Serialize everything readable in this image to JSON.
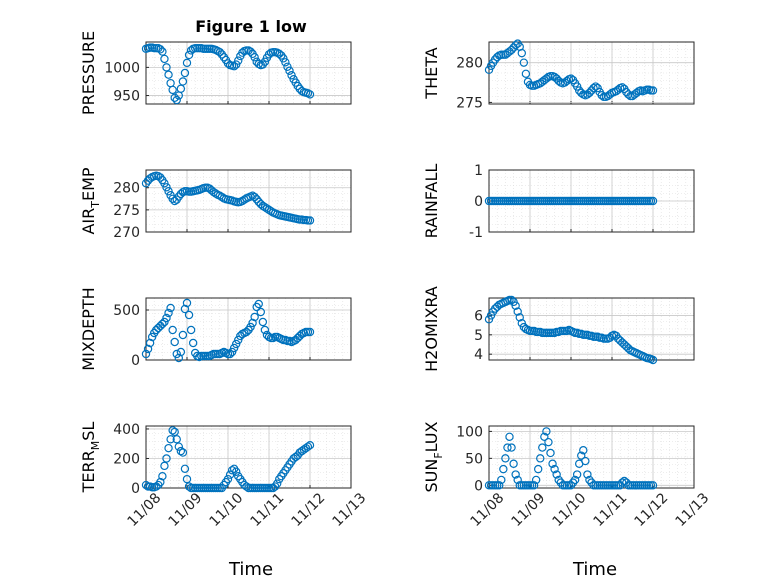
{
  "title": "Figure 1 low",
  "xlabel": "Time",
  "x_tick_labels": [
    "11/08",
    "11/09",
    "11/10",
    "11/11",
    "11/12",
    "11/13"
  ],
  "colors": {
    "marker": "#0072BD",
    "grid": "#dcdcdc",
    "axis": "#262626"
  },
  "chart_data": [
    {
      "type": "scatter",
      "ylabel": "PRESSURE",
      "ylim": [
        935,
        1045
      ],
      "yticks": [
        "950",
        "1000"
      ],
      "x": [
        0,
        0.05,
        0.1,
        0.15,
        0.2,
        0.25,
        0.3,
        0.35,
        0.4,
        0.45,
        0.5,
        0.55,
        0.6,
        0.65,
        0.7,
        0.75,
        0.8,
        0.85,
        0.9,
        0.95,
        1.0,
        1.05,
        1.1,
        1.15,
        1.2,
        1.25,
        1.3,
        1.35,
        1.4,
        1.45,
        1.5,
        1.55,
        1.6,
        1.65,
        1.7,
        1.75,
        1.8,
        1.85,
        1.9,
        1.95,
        2.0,
        2.05,
        2.1,
        2.15,
        2.2,
        2.25,
        2.3,
        2.35,
        2.4,
        2.45,
        2.5,
        2.55,
        2.6,
        2.65,
        2.7,
        2.75,
        2.8,
        2.85,
        2.9,
        2.95,
        3.0,
        3.05,
        3.1,
        3.15,
        3.2,
        3.25,
        3.3,
        3.35,
        3.4,
        3.45,
        3.5,
        3.55,
        3.6,
        3.65,
        3.7,
        3.75,
        3.8,
        3.85,
        3.9,
        3.95,
        4.0
      ],
      "y": [
        1033,
        1034,
        1035,
        1035,
        1034,
        1034,
        1034,
        1032,
        1028,
        1015,
        1000,
        987,
        972,
        960,
        946,
        942,
        950,
        962,
        975,
        990,
        1008,
        1022,
        1030,
        1033,
        1034,
        1034,
        1034,
        1034,
        1033,
        1033,
        1033,
        1033,
        1033,
        1032,
        1031,
        1029,
        1027,
        1023,
        1018,
        1013,
        1007,
        1004,
        1003,
        1002,
        1005,
        1012,
        1020,
        1026,
        1029,
        1030,
        1030,
        1028,
        1024,
        1018,
        1010,
        1006,
        1004,
        1005,
        1010,
        1017,
        1023,
        1026,
        1027,
        1027,
        1026,
        1024,
        1021,
        1016,
        1009,
        1001,
        994,
        986,
        979,
        973,
        967,
        962,
        958,
        956,
        955,
        954,
        952
      ]
    },
    {
      "type": "scatter",
      "ylabel": "THETA",
      "ylim": [
        274.8,
        282.6
      ],
      "yticks": [
        "275",
        "280"
      ],
      "x": [
        0,
        0.05,
        0.1,
        0.15,
        0.2,
        0.25,
        0.3,
        0.35,
        0.4,
        0.45,
        0.5,
        0.55,
        0.6,
        0.65,
        0.7,
        0.75,
        0.8,
        0.85,
        0.9,
        0.95,
        1.0,
        1.05,
        1.1,
        1.15,
        1.2,
        1.25,
        1.3,
        1.35,
        1.4,
        1.45,
        1.5,
        1.55,
        1.6,
        1.65,
        1.7,
        1.75,
        1.8,
        1.85,
        1.9,
        1.95,
        2.0,
        2.05,
        2.1,
        2.15,
        2.2,
        2.25,
        2.3,
        2.35,
        2.4,
        2.45,
        2.5,
        2.55,
        2.6,
        2.65,
        2.7,
        2.75,
        2.8,
        2.85,
        2.9,
        2.95,
        3.0,
        3.05,
        3.1,
        3.15,
        3.2,
        3.25,
        3.3,
        3.35,
        3.4,
        3.45,
        3.5,
        3.55,
        3.6,
        3.65,
        3.7,
        3.75,
        3.8,
        3.85,
        3.9,
        3.95,
        4.0
      ],
      "y": [
        279.1,
        279.6,
        280.0,
        280.4,
        280.7,
        280.9,
        281.0,
        281.0,
        281.0,
        281.2,
        281.4,
        281.6,
        281.9,
        282.2,
        282.4,
        282.0,
        281.2,
        280.0,
        278.6,
        277.6,
        277.2,
        277.1,
        277.1,
        277.2,
        277.3,
        277.4,
        277.6,
        277.8,
        278.0,
        278.2,
        278.3,
        278.3,
        278.2,
        278.0,
        277.7,
        277.5,
        277.4,
        277.5,
        277.7,
        277.9,
        278.0,
        277.8,
        277.4,
        277.0,
        276.5,
        276.2,
        276.0,
        275.9,
        276.0,
        276.2,
        276.5,
        276.8,
        277.0,
        276.8,
        276.3,
        275.9,
        275.7,
        275.7,
        275.8,
        276.0,
        276.2,
        276.3,
        276.4,
        276.6,
        276.8,
        276.9,
        276.7,
        276.3,
        276.0,
        275.8,
        275.8,
        276.0,
        276.2,
        276.4,
        276.5,
        276.4,
        276.5,
        276.6,
        276.6,
        276.5,
        276.5
      ]
    },
    {
      "type": "scatter",
      "ylabel": "AIR_TEMP",
      "ylim": [
        270,
        284
      ],
      "yticks": [
        "270",
        "275",
        "280"
      ],
      "x": [
        0,
        0.05,
        0.1,
        0.15,
        0.2,
        0.25,
        0.3,
        0.35,
        0.4,
        0.45,
        0.5,
        0.55,
        0.6,
        0.65,
        0.7,
        0.75,
        0.8,
        0.85,
        0.9,
        0.95,
        1.0,
        1.05,
        1.1,
        1.15,
        1.2,
        1.25,
        1.3,
        1.35,
        1.4,
        1.45,
        1.5,
        1.55,
        1.6,
        1.65,
        1.7,
        1.75,
        1.8,
        1.85,
        1.9,
        1.95,
        2.0,
        2.05,
        2.1,
        2.15,
        2.2,
        2.25,
        2.3,
        2.35,
        2.4,
        2.45,
        2.5,
        2.55,
        2.6,
        2.65,
        2.7,
        2.75,
        2.8,
        2.85,
        2.9,
        2.95,
        3.0,
        3.05,
        3.1,
        3.15,
        3.2,
        3.25,
        3.3,
        3.35,
        3.4,
        3.45,
        3.5,
        3.55,
        3.6,
        3.65,
        3.7,
        3.75,
        3.8,
        3.85,
        3.9,
        3.95,
        4.0
      ],
      "y": [
        281.0,
        281.6,
        282.1,
        282.4,
        282.6,
        282.7,
        282.6,
        282.3,
        281.7,
        281.0,
        280.1,
        279.2,
        278.3,
        277.5,
        277.0,
        277.3,
        278.0,
        278.6,
        279.0,
        279.2,
        279.2,
        279.1,
        279.1,
        279.2,
        279.3,
        279.4,
        279.5,
        279.7,
        279.9,
        280.0,
        280.0,
        279.8,
        279.4,
        279.0,
        278.7,
        278.4,
        278.2,
        277.9,
        277.6,
        277.4,
        277.3,
        277.2,
        277.1,
        276.9,
        276.8,
        276.7,
        276.8,
        277.0,
        277.3,
        277.6,
        277.8,
        278.0,
        278.2,
        277.9,
        277.4,
        276.8,
        276.3,
        275.9,
        275.6,
        275.3,
        275.0,
        274.7,
        274.4,
        274.2,
        274.0,
        273.8,
        273.7,
        273.6,
        273.5,
        273.4,
        273.3,
        273.2,
        273.1,
        273.0,
        272.9,
        272.8,
        272.8,
        272.7,
        272.7,
        272.6,
        272.6
      ]
    },
    {
      "type": "scatter",
      "ylabel": "RAINFALL",
      "ylim": [
        -1,
        1
      ],
      "yticks": [
        "-1",
        "0",
        "1"
      ],
      "x": [
        0,
        0.05,
        0.1,
        0.15,
        0.2,
        0.25,
        0.3,
        0.35,
        0.4,
        0.45,
        0.5,
        0.55,
        0.6,
        0.65,
        0.7,
        0.75,
        0.8,
        0.85,
        0.9,
        0.95,
        1.0,
        1.05,
        1.1,
        1.15,
        1.2,
        1.25,
        1.3,
        1.35,
        1.4,
        1.45,
        1.5,
        1.55,
        1.6,
        1.65,
        1.7,
        1.75,
        1.8,
        1.85,
        1.9,
        1.95,
        2.0,
        2.05,
        2.1,
        2.15,
        2.2,
        2.25,
        2.3,
        2.35,
        2.4,
        2.45,
        2.5,
        2.55,
        2.6,
        2.65,
        2.7,
        2.75,
        2.8,
        2.85,
        2.9,
        2.95,
        3.0,
        3.05,
        3.1,
        3.15,
        3.2,
        3.25,
        3.3,
        3.35,
        3.4,
        3.45,
        3.5,
        3.55,
        3.6,
        3.65,
        3.7,
        3.75,
        3.8,
        3.85,
        3.9,
        3.95,
        4.0
      ],
      "y": [
        0,
        0,
        0,
        0,
        0,
        0,
        0,
        0,
        0,
        0,
        0,
        0,
        0,
        0,
        0,
        0,
        0,
        0,
        0,
        0,
        0,
        0,
        0,
        0,
        0,
        0,
        0,
        0,
        0,
        0,
        0,
        0,
        0,
        0,
        0,
        0,
        0,
        0,
        0,
        0,
        0,
        0,
        0,
        0,
        0,
        0,
        0,
        0,
        0,
        0,
        0,
        0,
        0,
        0,
        0,
        0,
        0,
        0,
        0,
        0,
        0,
        0,
        0,
        0,
        0,
        0,
        0,
        0,
        0,
        0,
        0,
        0,
        0,
        0,
        0,
        0,
        0,
        0,
        0,
        0,
        0
      ]
    },
    {
      "type": "scatter",
      "ylabel": "MIXDEPTH",
      "ylim": [
        0,
        620
      ],
      "yticks": [
        "0",
        "500"
      ],
      "x": [
        0,
        0.05,
        0.1,
        0.15,
        0.2,
        0.25,
        0.3,
        0.35,
        0.4,
        0.45,
        0.5,
        0.55,
        0.6,
        0.65,
        0.7,
        0.75,
        0.8,
        0.85,
        0.9,
        0.95,
        1.0,
        1.05,
        1.1,
        1.15,
        1.2,
        1.25,
        1.3,
        1.35,
        1.4,
        1.45,
        1.5,
        1.55,
        1.6,
        1.65,
        1.7,
        1.75,
        1.8,
        1.85,
        1.9,
        1.95,
        2.0,
        2.05,
        2.1,
        2.15,
        2.2,
        2.25,
        2.3,
        2.35,
        2.4,
        2.45,
        2.5,
        2.55,
        2.6,
        2.65,
        2.7,
        2.75,
        2.8,
        2.85,
        2.9,
        2.95,
        3.0,
        3.05,
        3.1,
        3.15,
        3.2,
        3.25,
        3.3,
        3.35,
        3.4,
        3.45,
        3.5,
        3.55,
        3.6,
        3.65,
        3.7,
        3.75,
        3.8,
        3.85,
        3.9,
        3.95,
        4.0
      ],
      "y": [
        60,
        110,
        170,
        230,
        270,
        300,
        320,
        340,
        360,
        380,
        420,
        470,
        520,
        300,
        180,
        60,
        20,
        80,
        250,
        510,
        570,
        450,
        300,
        170,
        70,
        40,
        30,
        40,
        40,
        40,
        40,
        40,
        50,
        60,
        60,
        60,
        60,
        70,
        80,
        70,
        60,
        60,
        80,
        120,
        160,
        200,
        240,
        260,
        270,
        280,
        300,
        330,
        370,
        430,
        530,
        560,
        480,
        380,
        300,
        250,
        230,
        220,
        220,
        230,
        230,
        220,
        210,
        200,
        200,
        190,
        190,
        180,
        190,
        200,
        220,
        240,
        260,
        270,
        280,
        280,
        280
      ]
    },
    {
      "type": "scatter",
      "ylabel": "H2OMIXRA",
      "ylim": [
        3.7,
        6.9
      ],
      "yticks": [
        "4",
        "5",
        "6"
      ],
      "x": [
        0,
        0.05,
        0.1,
        0.15,
        0.2,
        0.25,
        0.3,
        0.35,
        0.4,
        0.45,
        0.5,
        0.55,
        0.6,
        0.65,
        0.7,
        0.75,
        0.8,
        0.85,
        0.9,
        0.95,
        1.0,
        1.05,
        1.1,
        1.15,
        1.2,
        1.25,
        1.3,
        1.35,
        1.4,
        1.45,
        1.5,
        1.55,
        1.6,
        1.65,
        1.7,
        1.75,
        1.8,
        1.85,
        1.9,
        1.95,
        2.0,
        2.05,
        2.1,
        2.15,
        2.2,
        2.25,
        2.3,
        2.35,
        2.4,
        2.45,
        2.5,
        2.55,
        2.6,
        2.65,
        2.7,
        2.75,
        2.8,
        2.85,
        2.9,
        2.95,
        3.0,
        3.05,
        3.1,
        3.15,
        3.2,
        3.25,
        3.3,
        3.35,
        3.4,
        3.45,
        3.5,
        3.55,
        3.6,
        3.65,
        3.7,
        3.75,
        3.8,
        3.85,
        3.9,
        3.95,
        4.0
      ],
      "y": [
        5.8,
        6.0,
        6.2,
        6.35,
        6.45,
        6.55,
        6.6,
        6.65,
        6.7,
        6.75,
        6.8,
        6.8,
        6.7,
        6.5,
        6.2,
        5.9,
        5.6,
        5.4,
        5.3,
        5.25,
        5.2,
        5.2,
        5.2,
        5.15,
        5.15,
        5.15,
        5.1,
        5.1,
        5.1,
        5.1,
        5.1,
        5.1,
        5.1,
        5.15,
        5.15,
        5.2,
        5.2,
        5.2,
        5.2,
        5.25,
        5.2,
        5.15,
        5.1,
        5.1,
        5.05,
        5.05,
        5.0,
        5.0,
        5.0,
        4.95,
        4.95,
        4.9,
        4.9,
        4.9,
        4.85,
        4.85,
        4.8,
        4.8,
        4.8,
        4.85,
        4.95,
        5.0,
        4.95,
        4.8,
        4.7,
        4.6,
        4.5,
        4.4,
        4.3,
        4.2,
        4.15,
        4.1,
        4.05,
        4.0,
        3.95,
        3.9,
        3.85,
        3.8,
        3.78,
        3.75,
        3.7
      ]
    },
    {
      "type": "scatter",
      "ylabel": "TERR_MSL",
      "ylim": [
        0,
        420
      ],
      "yticks": [
        "0",
        "200",
        "400"
      ],
      "x": [
        0,
        0.05,
        0.1,
        0.15,
        0.2,
        0.25,
        0.3,
        0.35,
        0.4,
        0.45,
        0.5,
        0.55,
        0.6,
        0.65,
        0.7,
        0.75,
        0.8,
        0.85,
        0.9,
        0.95,
        1.0,
        1.05,
        1.1,
        1.15,
        1.2,
        1.25,
        1.3,
        1.35,
        1.4,
        1.45,
        1.5,
        1.55,
        1.6,
        1.65,
        1.7,
        1.75,
        1.8,
        1.85,
        1.9,
        1.95,
        2.0,
        2.05,
        2.1,
        2.15,
        2.2,
        2.25,
        2.3,
        2.35,
        2.4,
        2.45,
        2.5,
        2.55,
        2.6,
        2.65,
        2.7,
        2.75,
        2.8,
        2.85,
        2.9,
        2.95,
        3.0,
        3.05,
        3.1,
        3.15,
        3.2,
        3.25,
        3.3,
        3.35,
        3.4,
        3.45,
        3.5,
        3.55,
        3.6,
        3.65,
        3.7,
        3.75,
        3.8,
        3.85,
        3.9,
        3.95,
        4.0
      ],
      "y": [
        20,
        10,
        10,
        5,
        5,
        10,
        20,
        40,
        80,
        150,
        200,
        270,
        330,
        390,
        380,
        330,
        280,
        250,
        240,
        130,
        60,
        10,
        0,
        0,
        0,
        0,
        0,
        0,
        0,
        0,
        0,
        0,
        0,
        0,
        0,
        0,
        0,
        0,
        20,
        40,
        60,
        90,
        120,
        130,
        110,
        80,
        60,
        40,
        20,
        10,
        0,
        0,
        0,
        0,
        0,
        0,
        0,
        0,
        0,
        0,
        0,
        0,
        0,
        10,
        30,
        60,
        80,
        100,
        120,
        140,
        160,
        180,
        200,
        210,
        220,
        240,
        250,
        260,
        270,
        280,
        290
      ]
    },
    {
      "type": "scatter",
      "ylabel": "SUN_FLUX",
      "ylim": [
        -5,
        110
      ],
      "yticks": [
        "0",
        "50",
        "100"
      ],
      "x": [
        0,
        0.05,
        0.1,
        0.15,
        0.2,
        0.25,
        0.3,
        0.35,
        0.4,
        0.45,
        0.5,
        0.55,
        0.6,
        0.65,
        0.7,
        0.75,
        0.8,
        0.85,
        0.9,
        0.95,
        1.0,
        1.05,
        1.1,
        1.15,
        1.2,
        1.25,
        1.3,
        1.35,
        1.4,
        1.45,
        1.5,
        1.55,
        1.6,
        1.65,
        1.7,
        1.75,
        1.8,
        1.85,
        1.9,
        1.95,
        2.0,
        2.05,
        2.1,
        2.15,
        2.2,
        2.25,
        2.3,
        2.35,
        2.4,
        2.45,
        2.5,
        2.55,
        2.6,
        2.65,
        2.7,
        2.75,
        2.8,
        2.85,
        2.9,
        2.95,
        3.0,
        3.05,
        3.1,
        3.15,
        3.2,
        3.25,
        3.3,
        3.35,
        3.4,
        3.45,
        3.5,
        3.55,
        3.6,
        3.65,
        3.7,
        3.75,
        3.8,
        3.85,
        3.9,
        3.95,
        4.0
      ],
      "y": [
        0,
        0,
        0,
        0,
        0,
        0,
        10,
        30,
        50,
        70,
        90,
        70,
        40,
        20,
        10,
        0,
        0,
        0,
        0,
        0,
        0,
        0,
        0,
        10,
        30,
        50,
        70,
        90,
        100,
        80,
        60,
        40,
        30,
        20,
        10,
        5,
        0,
        0,
        0,
        0,
        0,
        5,
        10,
        20,
        40,
        55,
        65,
        45,
        20,
        10,
        5,
        0,
        0,
        0,
        0,
        0,
        0,
        0,
        0,
        0,
        0,
        0,
        0,
        0,
        0,
        5,
        8,
        5,
        0,
        0,
        0,
        0,
        0,
        0,
        0,
        0,
        0,
        0,
        0,
        0,
        0
      ]
    }
  ]
}
